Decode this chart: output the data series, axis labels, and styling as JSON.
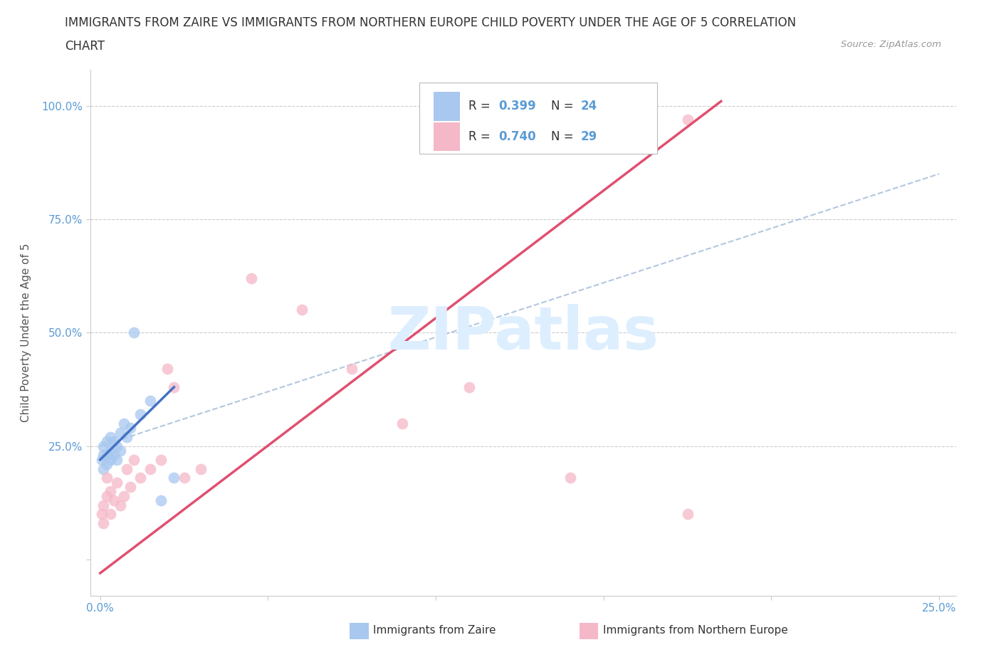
{
  "title_line1": "IMMIGRANTS FROM ZAIRE VS IMMIGRANTS FROM NORTHERN EUROPE CHILD POVERTY UNDER THE AGE OF 5 CORRELATION",
  "title_line2": "CHART",
  "source": "Source: ZipAtlas.com",
  "ylabel": "Child Poverty Under the Age of 5",
  "xlim": [
    -0.003,
    0.255
  ],
  "ylim": [
    -0.08,
    1.08
  ],
  "x_tick_positions": [
    0.0,
    0.05,
    0.1,
    0.15,
    0.2,
    0.25
  ],
  "x_tick_labels": [
    "0.0%",
    "",
    "",
    "",
    "",
    "25.0%"
  ],
  "y_tick_positions": [
    0.0,
    0.25,
    0.5,
    0.75,
    1.0
  ],
  "y_tick_labels": [
    "",
    "25.0%",
    "50.0%",
    "75.0%",
    "100.0%"
  ],
  "legend_label1": "Immigrants from Zaire",
  "legend_label2": "Immigrants from Northern Europe",
  "R1": "0.399",
  "N1": "24",
  "R2": "0.740",
  "N2": "29",
  "color1": "#a8c8f0",
  "color2": "#f5b8c8",
  "line1_color": "#4472c4",
  "line2_color": "#e05070",
  "dash_color": "#a0b8d8",
  "watermark_color": "#ddeeff",
  "zaire_x": [
    0.0005,
    0.001,
    0.001,
    0.001,
    0.002,
    0.002,
    0.002,
    0.003,
    0.003,
    0.003,
    0.004,
    0.004,
    0.005,
    0.005,
    0.006,
    0.006,
    0.007,
    0.008,
    0.009,
    0.01,
    0.012,
    0.015,
    0.018,
    0.022
  ],
  "zaire_y": [
    0.22,
    0.2,
    0.23,
    0.25,
    0.21,
    0.23,
    0.26,
    0.22,
    0.24,
    0.27,
    0.23,
    0.26,
    0.22,
    0.25,
    0.24,
    0.28,
    0.3,
    0.27,
    0.29,
    0.5,
    0.32,
    0.35,
    0.13,
    0.18
  ],
  "ne_x": [
    0.0005,
    0.001,
    0.001,
    0.002,
    0.002,
    0.003,
    0.003,
    0.004,
    0.005,
    0.006,
    0.007,
    0.008,
    0.009,
    0.01,
    0.012,
    0.015,
    0.018,
    0.02,
    0.022,
    0.025,
    0.03,
    0.045,
    0.06,
    0.075,
    0.09,
    0.11,
    0.14,
    0.175,
    0.175
  ],
  "ne_y": [
    0.1,
    0.08,
    0.12,
    0.14,
    0.18,
    0.1,
    0.15,
    0.13,
    0.17,
    0.12,
    0.14,
    0.2,
    0.16,
    0.22,
    0.18,
    0.2,
    0.22,
    0.42,
    0.38,
    0.18,
    0.2,
    0.62,
    0.55,
    0.42,
    0.3,
    0.38,
    0.18,
    0.1,
    0.97
  ],
  "ne_line_x0": 0.0,
  "ne_line_y0": -0.03,
  "ne_line_x1": 0.185,
  "ne_line_y1": 1.01,
  "zaire_line_x0": 0.0,
  "zaire_line_y0": 0.22,
  "zaire_line_x1": 0.022,
  "zaire_line_y1": 0.38,
  "dash_line_x0": 0.0,
  "dash_line_y0": 0.25,
  "dash_line_x1": 0.25,
  "dash_line_y1": 0.85
}
